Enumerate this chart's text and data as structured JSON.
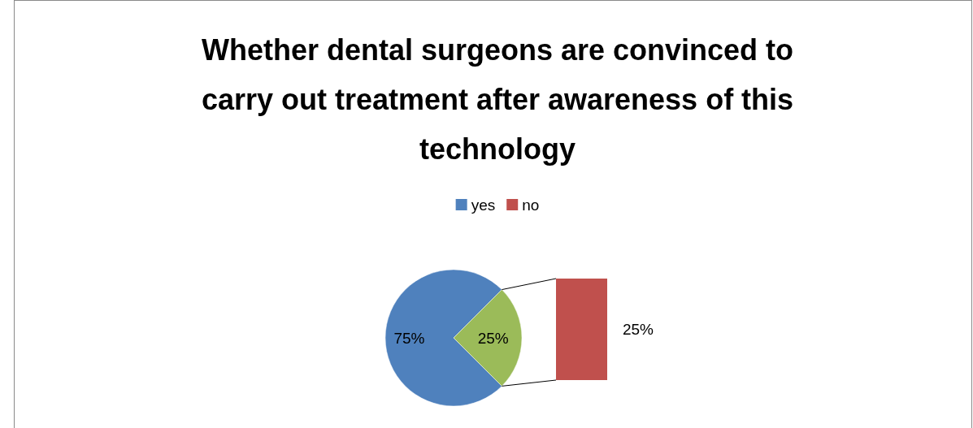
{
  "chart_data": [
    {
      "type": "pie",
      "title": "Whether dental surgeons are convinced to carry out treatment after awareness of this technology",
      "categories": [
        "yes",
        null
      ],
      "values": [
        75,
        25
      ],
      "colors": [
        "#4f81bd",
        "#9bbb59"
      ],
      "value_labels": [
        "75%",
        "25%"
      ],
      "legend": "top"
    },
    {
      "type": "other",
      "series": [
        {
          "name": "no",
          "color": "#c0504d",
          "values": [
            25
          ],
          "value_labels": [
            "25%"
          ]
        }
      ],
      "legend": "top"
    }
  ]
}
